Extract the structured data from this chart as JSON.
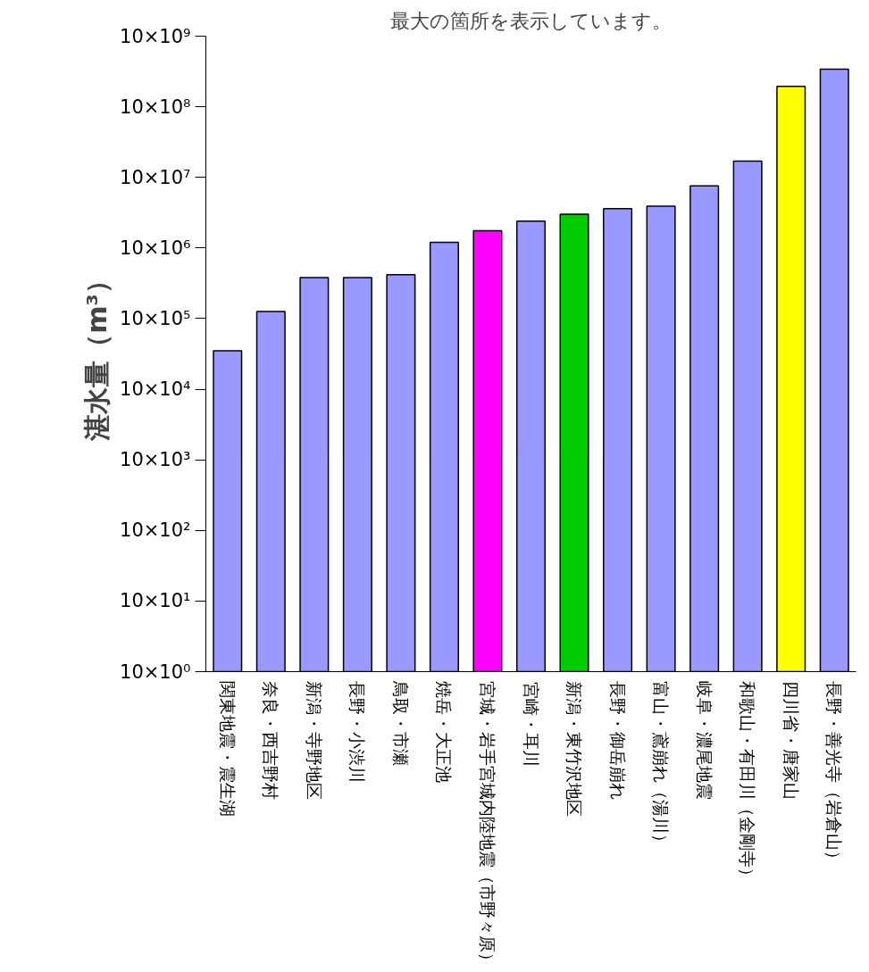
{
  "chart_data": {
    "type": "bar",
    "title": "最大の箇所を表示しています。",
    "ylabel": "湛水量（m³）",
    "categories": [
      "関東地震・震生湖",
      "奈良・西吉野村",
      "新潟・寺野地区",
      "長野・小渋川",
      "鳥取・市瀬",
      "焼岳・大正池",
      "宮城・岩手宮城内陸地震（市野々原）",
      "宮崎・耳川",
      "新潟・東竹沢地区",
      "長野・御岳崩れ",
      "富山・鳶崩れ（湯川）",
      "岐阜・濃尾地震",
      "和歌山・有田川（金剛寺）",
      "四川省・唐家山",
      "長野・善光寺（岩倉山）"
    ],
    "values": [
      350000,
      1260000,
      3800000,
      3800000,
      4200000,
      12000000,
      17500000,
      24000000,
      30000000,
      36000000,
      39000000,
      76000000,
      170000000,
      1950000000,
      3400000000
    ],
    "colors": [
      "#9999ff",
      "#9999ff",
      "#9999ff",
      "#9999ff",
      "#9999ff",
      "#9999ff",
      "#ff00ff",
      "#9999ff",
      "#00cc00",
      "#9999ff",
      "#9999ff",
      "#9999ff",
      "#9999ff",
      "#ffff00",
      "#9999ff"
    ],
    "log": true,
    "ylim": [
      10,
      10000000000
    ],
    "yticks": [
      {
        "value": 10,
        "label": "10×10⁰"
      },
      {
        "value": 100,
        "label": "10×10¹"
      },
      {
        "value": 1000,
        "label": "10×10²"
      },
      {
        "value": 10000,
        "label": "10×10³"
      },
      {
        "value": 100000,
        "label": "10×10⁴"
      },
      {
        "value": 1000000,
        "label": "10×10⁵"
      },
      {
        "value": 10000000,
        "label": "10×10⁶"
      },
      {
        "value": 100000000,
        "label": "10×10⁷"
      },
      {
        "value": 1000000000,
        "label": "10×10⁸"
      },
      {
        "value": 10000000000,
        "label": "10×10⁹"
      }
    ],
    "grid": false
  }
}
